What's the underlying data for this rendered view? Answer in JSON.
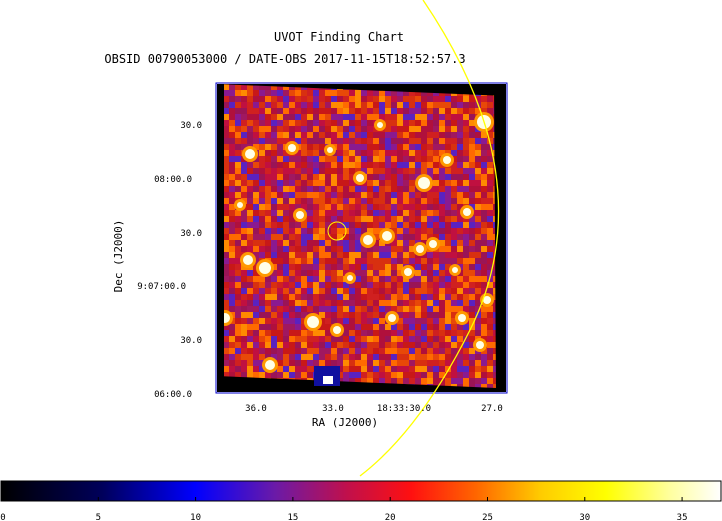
{
  "chart_data": {
    "type": "heatmap",
    "title": "UVOT Finding Chart",
    "subtitle": "OBSID 00790053000 / DATE-OBS 2017-11-15T18:52:57.3",
    "xlabel": "RA (J2000)",
    "ylabel": "Dec (J2000)",
    "x_ticks": [
      "36.0",
      "33.0",
      "18:33:30.0",
      "27.0"
    ],
    "y_ticks": [
      "30.0",
      "08:00.0",
      "30.0",
      "9:07:00.0",
      "30.0",
      "06:00.0"
    ],
    "colorbar": {
      "ticks": [
        "0",
        "5",
        "10",
        "15",
        "20",
        "25",
        "30",
        "35"
      ],
      "range": [
        0,
        37
      ]
    },
    "colors": {
      "marker_circle": "#ffff00",
      "frame": "#0000cc"
    }
  }
}
